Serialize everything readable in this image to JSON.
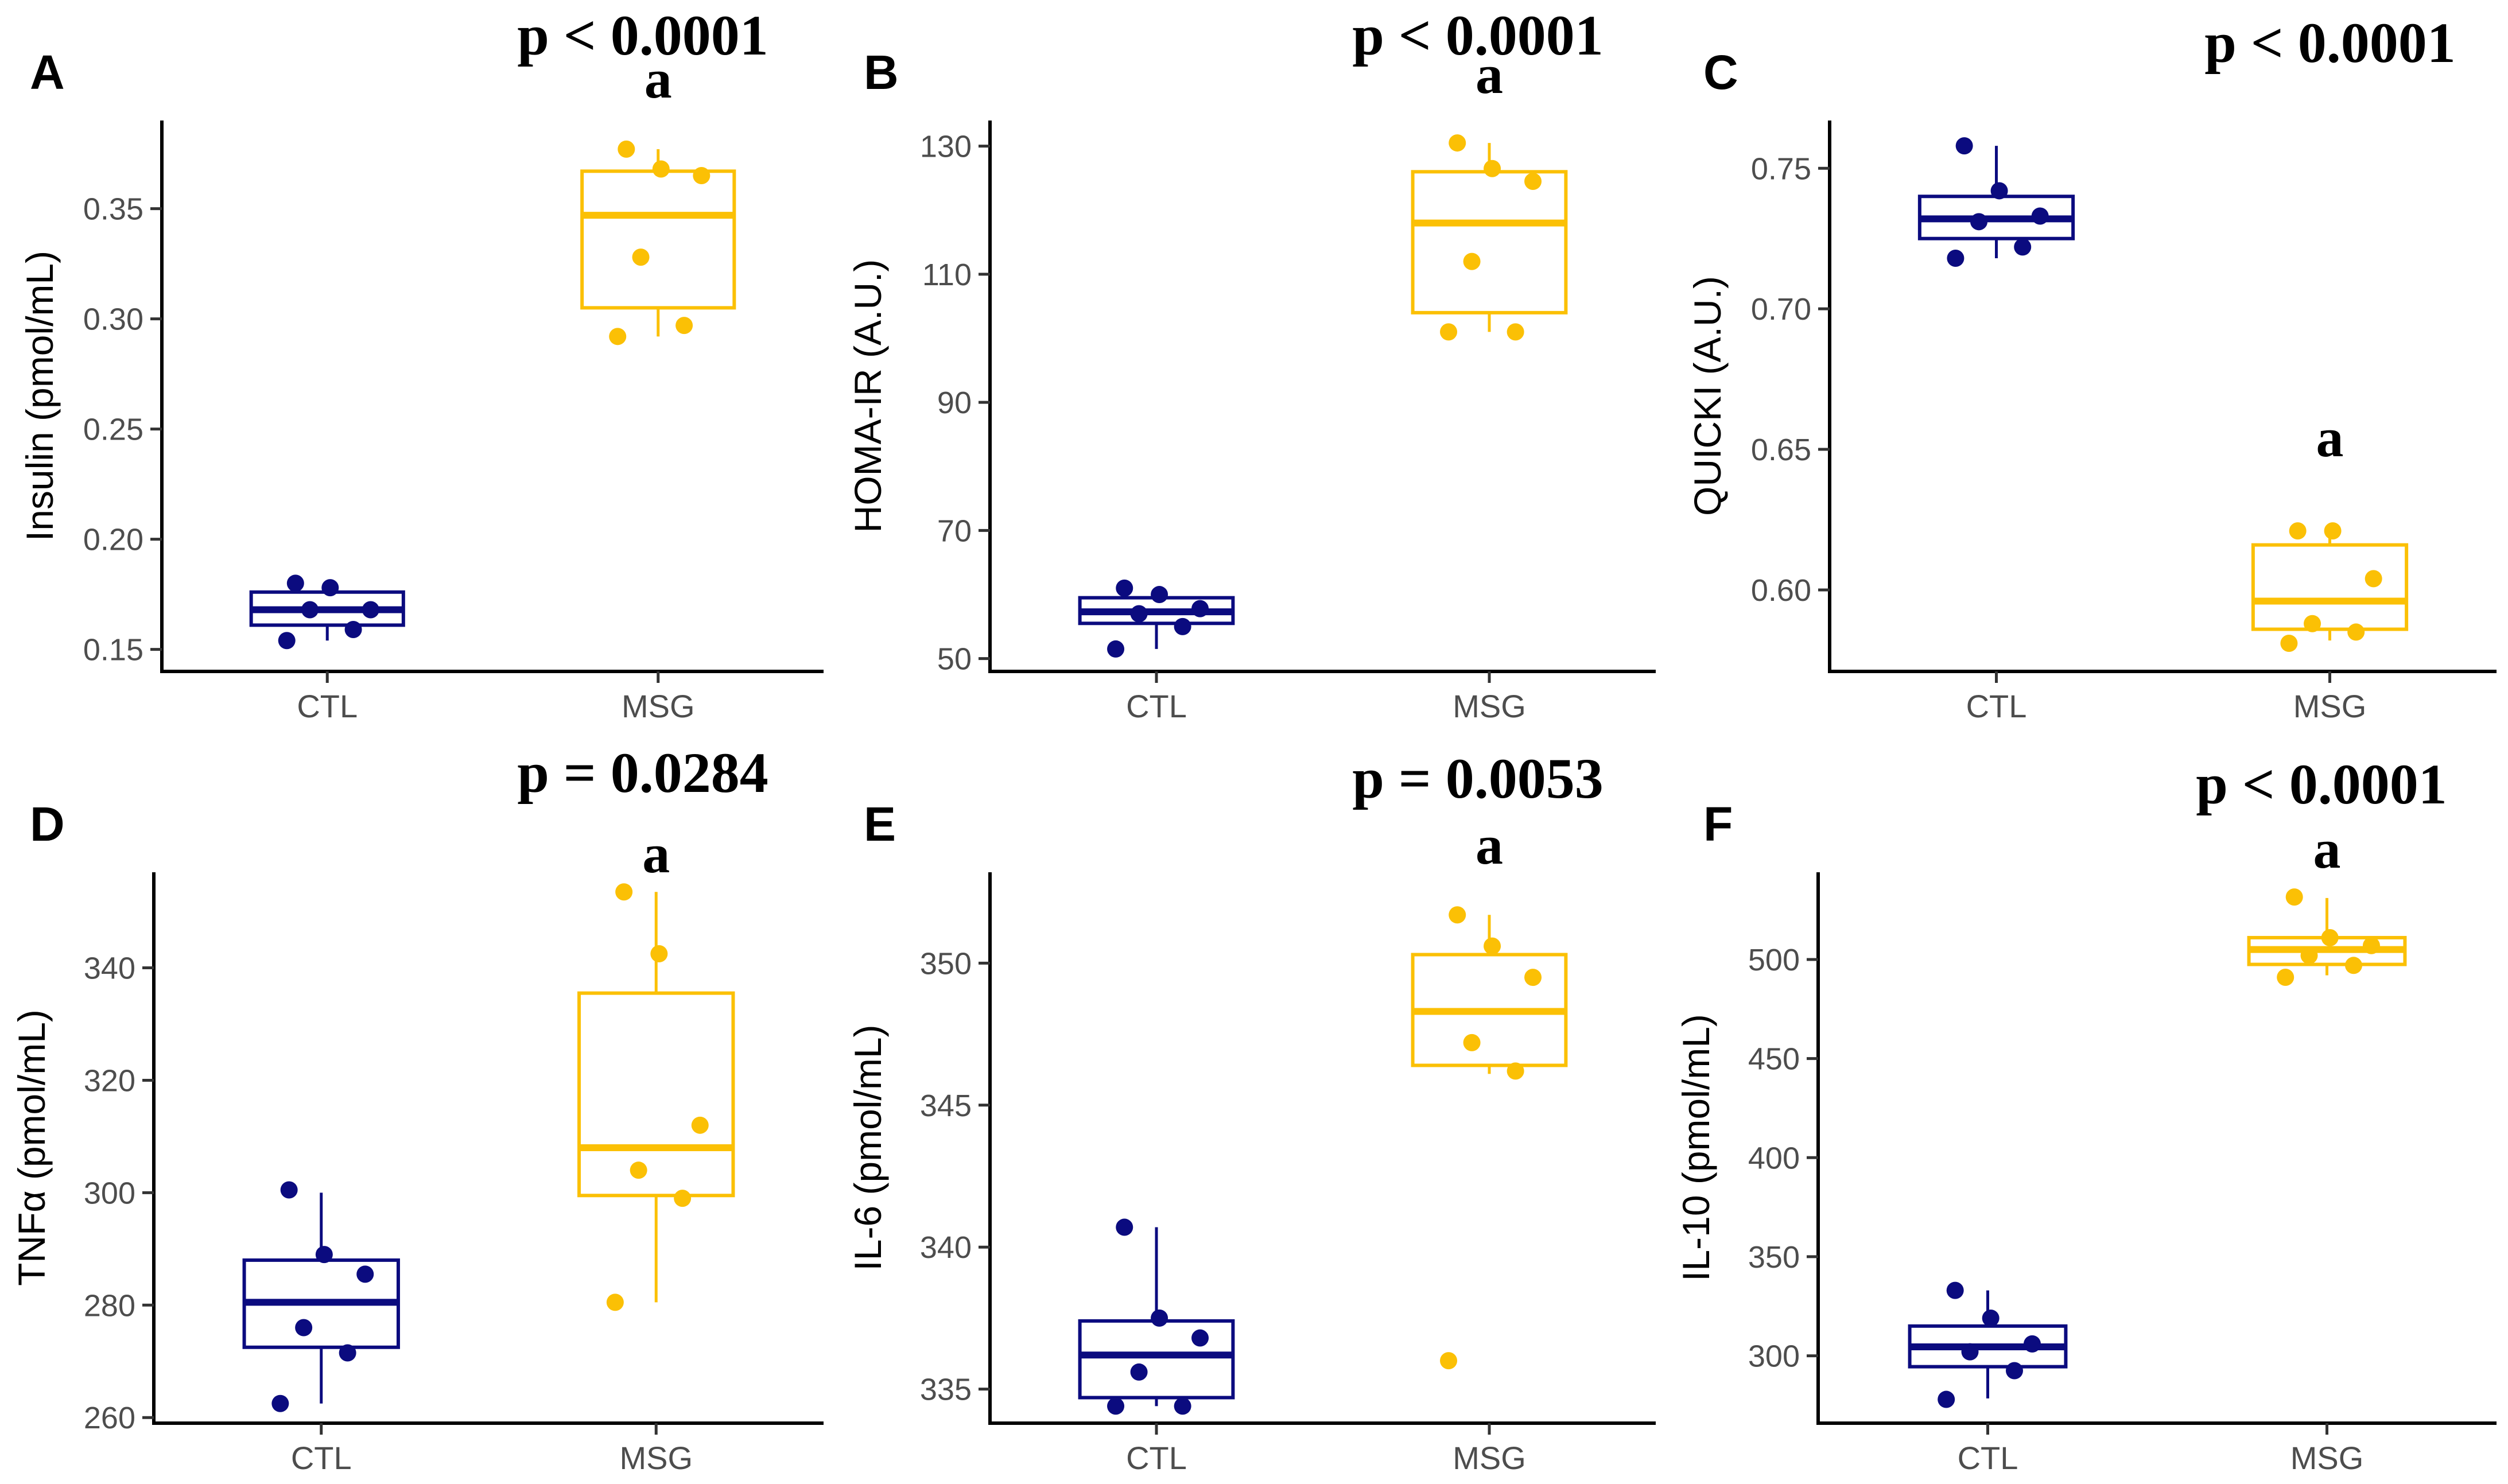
{
  "colors": {
    "CTL": "#0b0b7f",
    "MSG": "#fbc005"
  },
  "chart_data": [
    {
      "panel": "A",
      "type": "box",
      "ylabel": "Insulin (pmol/mL)",
      "categories": [
        "CTL",
        "MSG"
      ],
      "ylim": [
        0.14,
        0.39
      ],
      "yticks": [
        0.15,
        0.2,
        0.25,
        0.3,
        0.35
      ],
      "yticklabels": [
        "0.15",
        "0.20",
        "0.25",
        "0.30",
        "0.35"
      ],
      "p_value": "p < 0.0001",
      "sig_label": "a",
      "sig_group": "MSG",
      "boxes": [
        {
          "group": "CTL",
          "whisker_low": 0.154,
          "q1": 0.161,
          "median": 0.168,
          "q3": 0.176,
          "whisker_high": 0.18,
          "points": [
            0.154,
            0.159,
            0.168,
            0.168,
            0.178,
            0.18
          ]
        },
        {
          "group": "MSG",
          "whisker_low": 0.292,
          "q1": 0.305,
          "median": 0.347,
          "q3": 0.367,
          "whisker_high": 0.377,
          "points": [
            0.292,
            0.297,
            0.328,
            0.365,
            0.368,
            0.377
          ]
        }
      ]
    },
    {
      "panel": "B",
      "type": "box",
      "ylabel": "HOMA-IR (A.U.)",
      "categories": [
        "CTL",
        "MSG"
      ],
      "ylim": [
        48,
        134
      ],
      "yticks": [
        50,
        70,
        90,
        110,
        130
      ],
      "yticklabels": [
        "50",
        "70",
        "90",
        "110",
        "130"
      ],
      "p_value": "p < 0.0001",
      "sig_label": "a",
      "sig_group": "MSG",
      "boxes": [
        {
          "group": "CTL",
          "whisker_low": 51.5,
          "q1": 55.5,
          "median": 57.3,
          "q3": 59.5,
          "whisker_high": 61,
          "points": [
            51.5,
            55,
            57,
            57.8,
            60,
            61
          ]
        },
        {
          "group": "MSG",
          "whisker_low": 101,
          "q1": 104,
          "median": 118,
          "q3": 126,
          "whisker_high": 130.5,
          "points": [
            101,
            101,
            112,
            124.5,
            126.5,
            130.5
          ]
        }
      ]
    },
    {
      "panel": "C",
      "type": "box",
      "ylabel": "QUICKI (A.U.)",
      "categories": [
        "CTL",
        "MSG"
      ],
      "ylim": [
        0.571,
        0.767
      ],
      "yticks": [
        0.6,
        0.65,
        0.7,
        0.75
      ],
      "yticklabels": [
        "0.60",
        "0.65",
        "0.70",
        "0.75"
      ],
      "p_value": "p < 0.0001",
      "sig_label": "a",
      "sig_group": "MSG",
      "boxes": [
        {
          "group": "CTL",
          "whisker_low": 0.718,
          "q1": 0.725,
          "median": 0.732,
          "q3": 0.74,
          "whisker_high": 0.758,
          "points": [
            0.718,
            0.722,
            0.731,
            0.733,
            0.742,
            0.758
          ]
        },
        {
          "group": "MSG",
          "whisker_low": 0.582,
          "q1": 0.586,
          "median": 0.596,
          "q3": 0.616,
          "whisker_high": 0.621,
          "points": [
            0.581,
            0.585,
            0.588,
            0.604,
            0.621,
            0.621
          ]
        }
      ]
    },
    {
      "panel": "D",
      "type": "box",
      "ylabel": "TNFα (pmol/mL)",
      "categories": [
        "CTL",
        "MSG"
      ],
      "ylim": [
        259,
        357
      ],
      "yticks": [
        260,
        280,
        300,
        320,
        340
      ],
      "yticklabels": [
        "260",
        "280",
        "300",
        "320",
        "340"
      ],
      "p_value": "p = 0.0284",
      "sig_label": "a",
      "sig_group": "MSG",
      "boxes": [
        {
          "group": "CTL",
          "whisker_low": 262.5,
          "q1": 272.5,
          "median": 280.5,
          "q3": 288,
          "whisker_high": 300,
          "points": [
            262.5,
            271.5,
            276,
            285.5,
            289,
            300.5
          ]
        },
        {
          "group": "MSG",
          "whisker_low": 280.5,
          "q1": 299.5,
          "median": 308,
          "q3": 335.5,
          "whisker_high": 353.5,
          "points": [
            280.5,
            299,
            304,
            312,
            342.5,
            353.5
          ]
        }
      ]
    },
    {
      "panel": "E",
      "type": "box",
      "ylabel": "IL-6 (pmol/mL)",
      "categories": [
        "CTL",
        "MSG"
      ],
      "ylim": [
        333.8,
        353.2
      ],
      "yticks": [
        335,
        340,
        345,
        350
      ],
      "yticklabels": [
        "335",
        "340",
        "345",
        "350"
      ],
      "p_value": "p = 0.0053",
      "sig_label": "a",
      "sig_group": "MSG",
      "boxes": [
        {
          "group": "CTL",
          "whisker_low": 334.4,
          "q1": 334.7,
          "median": 336.2,
          "q3": 337.4,
          "whisker_high": 340.7,
          "points": [
            334.4,
            334.4,
            335.6,
            336.8,
            337.5,
            340.7
          ]
        },
        {
          "group": "MSG",
          "whisker_low": 346.1,
          "q1": 346.4,
          "median": 348.3,
          "q3": 350.3,
          "whisker_high": 351.7,
          "points": [
            336,
            346.2,
            347.2,
            349.5,
            350.6,
            351.7
          ]
        }
      ]
    },
    {
      "panel": "F",
      "type": "box",
      "ylabel": "IL-10 (pmol/mL)",
      "categories": [
        "CTL",
        "MSG"
      ],
      "ylim": [
        266,
        544
      ],
      "yticks": [
        300,
        350,
        400,
        450,
        500
      ],
      "yticklabels": [
        "300",
        "350",
        "400",
        "450",
        "500"
      ],
      "p_value": "p < 0.0001",
      "sig_label": "a",
      "sig_group": "MSG",
      "boxes": [
        {
          "group": "CTL",
          "whisker_low": 278.5,
          "q1": 294.5,
          "median": 304.5,
          "q3": 315,
          "whisker_high": 333,
          "points": [
            278,
            292.5,
            302,
            306,
            319,
            333
          ]
        },
        {
          "group": "MSG",
          "whisker_low": 492,
          "q1": 497.5,
          "median": 505,
          "q3": 511,
          "whisker_high": 531,
          "points": [
            491,
            497,
            502,
            507,
            511,
            531.5
          ]
        }
      ]
    }
  ]
}
